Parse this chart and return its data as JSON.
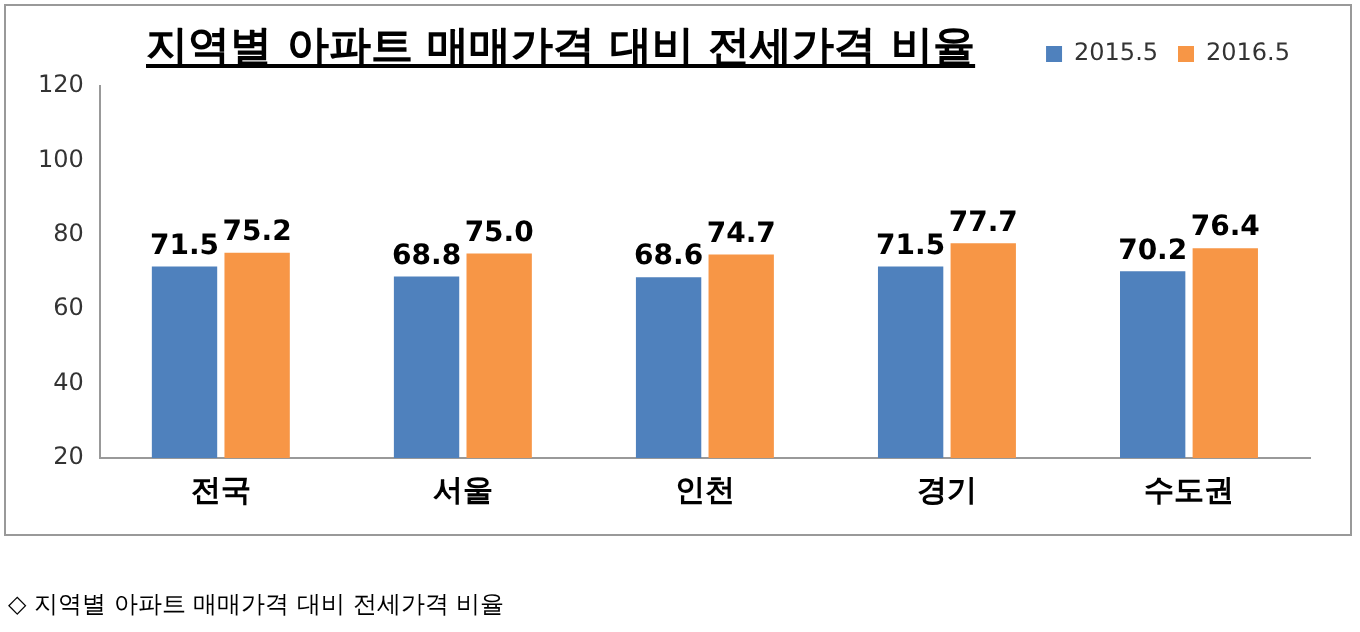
{
  "chart_data": {
    "type": "bar",
    "title": "지역별 아파트 매매가격 대비 전세가격 비율",
    "categories": [
      "전국",
      "서울",
      "인천",
      "경기",
      "수도권"
    ],
    "series": [
      {
        "name": "2015.5",
        "color": "#4f81bd",
        "values": [
          71.5,
          68.8,
          68.6,
          71.5,
          70.2
        ],
        "value_labels": [
          "71.5",
          "68.8",
          "68.6",
          "71.5",
          "70.2"
        ]
      },
      {
        "name": "2016.5",
        "color": "#f79646",
        "values": [
          75.2,
          75.0,
          74.7,
          77.7,
          76.4
        ],
        "value_labels": [
          "75.2",
          "75.0",
          "74.7",
          "77.7",
          "76.4"
        ]
      }
    ],
    "ylim": [
      20,
      120
    ],
    "yticks": [
      20,
      40,
      60,
      80,
      100,
      120
    ],
    "grid": false,
    "legend": "top right",
    "annotations": [
      "◇ 지역별 아파트 매매가격 대비 전세가격 비율"
    ]
  }
}
